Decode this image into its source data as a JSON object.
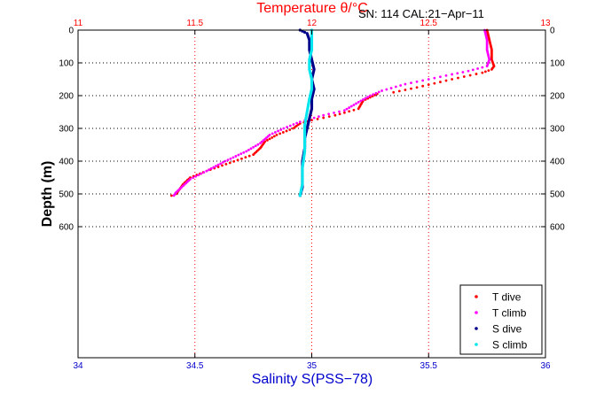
{
  "chart_data": {
    "type": "scatter",
    "top_axis": {
      "label": "Temperature θ/°C",
      "range": [
        11,
        13
      ],
      "ticks": [
        "11",
        "11.5",
        "12",
        "12.5",
        "13"
      ],
      "color": "#ff0000"
    },
    "bottom_axis": {
      "label": "Salinity S(PSS−78)",
      "range": [
        34,
        36
      ],
      "ticks": [
        "34",
        "34.5",
        "35",
        "35.5",
        "36"
      ],
      "color": "#0000cc"
    },
    "y_axis": {
      "label": "Depth (m)",
      "range": [
        0,
        1000
      ],
      "ticks": [
        "0",
        "100",
        "200",
        "300",
        "400",
        "500",
        "600"
      ],
      "reversed": true
    },
    "annotation": "SN: 114  CAL:21−Apr−11",
    "grid": true,
    "legend_position": "bottom-right",
    "series": [
      {
        "name": "T dive",
        "color": "#ff0000",
        "x": [
          12.75,
          12.76,
          12.77,
          12.77,
          12.78,
          12.77,
          12.73,
          12.6,
          12.45,
          12.35,
          12.28,
          12.25,
          12.22,
          12.2,
          12.1,
          12.0,
          11.95,
          11.92,
          11.85,
          11.8,
          11.78,
          11.75,
          11.65,
          11.55,
          11.48,
          11.45,
          11.43,
          11.42,
          11.4
        ],
        "y": [
          0,
          30,
          60,
          90,
          110,
          120,
          130,
          150,
          175,
          190,
          195,
          205,
          215,
          240,
          260,
          275,
          285,
          300,
          320,
          340,
          360,
          380,
          405,
          430,
          450,
          470,
          490,
          500,
          505
        ]
      },
      {
        "name": "T climb",
        "color": "#ff00ff",
        "x": [
          12.74,
          12.75,
          12.75,
          12.76,
          12.75,
          12.67,
          12.6,
          12.5,
          12.4,
          12.3,
          12.25,
          12.2,
          12.14,
          12.05,
          11.95,
          11.88,
          11.82,
          11.78,
          11.72,
          11.63,
          11.55,
          11.48,
          11.45,
          11.42,
          11.41
        ],
        "y": [
          0,
          30,
          60,
          90,
          110,
          125,
          135,
          150,
          165,
          185,
          200,
          220,
          245,
          260,
          280,
          300,
          320,
          345,
          370,
          400,
          430,
          455,
          475,
          495,
          505
        ]
      },
      {
        "name": "S dive",
        "color": "#00008b",
        "x": [
          34.95,
          34.98,
          34.99,
          34.99,
          35.0,
          35.01,
          35.0,
          35.01,
          35.0,
          35.0,
          34.99,
          34.98,
          34.97,
          34.97,
          34.96,
          34.96,
          34.96,
          34.95
        ],
        "y": [
          0,
          10,
          30,
          60,
          90,
          120,
          150,
          180,
          210,
          240,
          270,
          300,
          330,
          360,
          400,
          440,
          480,
          505
        ]
      },
      {
        "name": "S climb",
        "color": "#00e5ee",
        "x": [
          35.0,
          35.0,
          35.0,
          34.99,
          34.99,
          35.0,
          35.0,
          34.99,
          34.98,
          34.97,
          34.97,
          34.97,
          34.96,
          34.96,
          34.95
        ],
        "y": [
          0,
          30,
          60,
          90,
          120,
          150,
          180,
          210,
          250,
          290,
          330,
          370,
          420,
          470,
          505
        ]
      }
    ]
  }
}
